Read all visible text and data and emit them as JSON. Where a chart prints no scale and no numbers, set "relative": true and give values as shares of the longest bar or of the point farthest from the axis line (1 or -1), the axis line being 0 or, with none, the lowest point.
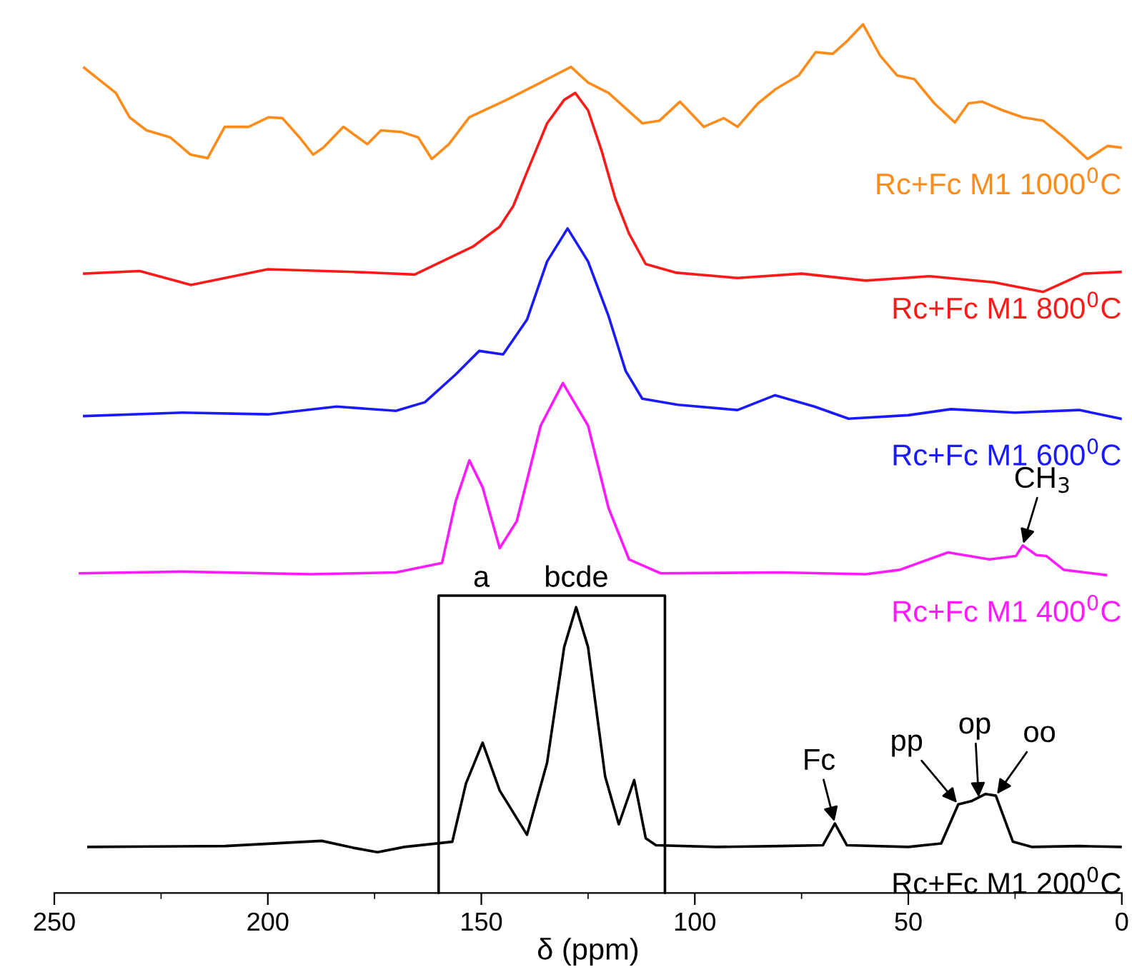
{
  "chart_data": {
    "type": "line",
    "relative": true,
    "xlabel": "δ (ppm)",
    "xlim": [
      250,
      0
    ],
    "xticks": [
      250,
      200,
      150,
      100,
      50,
      0
    ],
    "tick_labels": "x",
    "grid": false,
    "legend": false,
    "marker": "none",
    "line_style": "solid",
    "series": [
      {
        "name": "Rc+Fc M1 1000$^{0}$C",
        "color": "#ff8c1a",
        "x": [
          243.0,
          235.6,
          232.4,
          228.4,
          222.9,
          218.1,
          214.1,
          210.1,
          204.5,
          199.8,
          196.6,
          192.6,
          189.4,
          187.0,
          182.3,
          176.7,
          173.5,
          168.7,
          164.8,
          161.6,
          157.6,
          152.8,
          144.1,
          136.1,
          129.0,
          125.0,
          120.2,
          112.3,
          108.3,
          103.5,
          97.9,
          93.2,
          90.0,
          85.2,
          81.2,
          75.7,
          71.7,
          67.7,
          64.5,
          60.6,
          56.6,
          52.6,
          48.6,
          43.9,
          39.1,
          35.9,
          32.7,
          27.9,
          23.2,
          18.4,
          13.6,
          8.0,
          3.3,
          0.1
        ],
        "values": [
          0.95,
          0.921,
          0.893,
          0.878,
          0.87,
          0.85,
          0.846,
          0.882,
          0.882,
          0.893,
          0.892,
          0.87,
          0.85,
          0.858,
          0.882,
          0.862,
          0.878,
          0.876,
          0.87,
          0.845,
          0.862,
          0.893,
          0.913,
          0.933,
          0.951,
          0.933,
          0.921,
          0.886,
          0.889,
          0.911,
          0.882,
          0.892,
          0.882,
          0.909,
          0.925,
          0.941,
          0.968,
          0.966,
          0.98,
          1.0,
          0.964,
          0.941,
          0.937,
          0.909,
          0.887,
          0.909,
          0.911,
          0.901,
          0.893,
          0.889,
          0.87,
          0.845,
          0.86,
          0.858
        ]
      },
      {
        "name": "Rc+Fc M1 800$^{0}$C",
        "color": "#ff1a1a",
        "x": [
          243,
          230,
          218,
          200,
          180,
          165.6,
          152,
          145.7,
          142.5,
          139.3,
          134.6,
          130.6,
          128,
          125,
          121.8,
          118.6,
          115.4,
          111.5,
          104.3,
          90,
          75,
          60,
          45,
          30,
          18.4,
          9,
          0.2
        ],
        "values": [
          0.713,
          0.716,
          0.7,
          0.718,
          0.715,
          0.712,
          0.744,
          0.767,
          0.791,
          0.83,
          0.886,
          0.913,
          0.921,
          0.901,
          0.854,
          0.799,
          0.759,
          0.724,
          0.714,
          0.708,
          0.713,
          0.705,
          0.71,
          0.703,
          0.692,
          0.713,
          0.715
        ]
      },
      {
        "name": "Rc+Fc M1 600$^{0}$C",
        "color": "#1a1aff",
        "x": [
          243,
          220,
          200,
          183.9,
          170,
          163.2,
          156,
          150.5,
          144.9,
          139.3,
          134.6,
          129.8,
          125,
          120.2,
          116.2,
          112.3,
          104,
          90,
          81.2,
          72,
          64,
          50,
          40,
          25,
          10,
          0.2
        ],
        "values": [
          0.549,
          0.553,
          0.551,
          0.56,
          0.555,
          0.565,
          0.597,
          0.624,
          0.62,
          0.66,
          0.727,
          0.765,
          0.727,
          0.664,
          0.601,
          0.569,
          0.562,
          0.556,
          0.573,
          0.56,
          0.546,
          0.55,
          0.557,
          0.553,
          0.556,
          0.546
        ]
      },
      {
        "name": "Rc+Fc M1 400$^{0}$C",
        "color": "#ff1aff",
        "x": [
          244,
          220,
          190,
          170,
          159.2,
          156,
          152.8,
          149.7,
          145.7,
          141.7,
          136.1,
          130.9,
          125,
          120.2,
          115.4,
          108,
          80,
          60,
          52,
          40.7,
          31,
          24.8,
          23.2,
          20,
          17.7,
          13.6,
          3.7
        ],
        "values": [
          0.368,
          0.37,
          0.367,
          0.369,
          0.38,
          0.451,
          0.498,
          0.467,
          0.397,
          0.428,
          0.538,
          0.587,
          0.538,
          0.443,
          0.384,
          0.368,
          0.369,
          0.367,
          0.372,
          0.392,
          0.384,
          0.388,
          0.4,
          0.389,
          0.388,
          0.372,
          0.366
        ]
      },
      {
        "name": "Rc+Fc M1 200$^{0}$C",
        "color": "#000000",
        "x": [
          242,
          210,
          187.4,
          180,
          174.3,
          168,
          156.8,
          153.6,
          149.7,
          145.7,
          139.3,
          134.6,
          130.6,
          127.8,
          125,
          121,
          117.8,
          114.2,
          111.5,
          109.1,
          95,
          80,
          70,
          67.2,
          64.4,
          50,
          42.3,
          38.3,
          35.1,
          31.9,
          29.5,
          25.5,
          21,
          10,
          0.2
        ],
        "values": [
          0.053,
          0.054,
          0.06,
          0.052,
          0.047,
          0.053,
          0.059,
          0.126,
          0.173,
          0.118,
          0.067,
          0.15,
          0.283,
          0.329,
          0.283,
          0.134,
          0.079,
          0.13,
          0.063,
          0.055,
          0.053,
          0.054,
          0.055,
          0.08,
          0.055,
          0.053,
          0.057,
          0.102,
          0.106,
          0.114,
          0.112,
          0.059,
          0.053,
          0.054,
          0.053
        ]
      }
    ],
    "annotations": [
      "a",
      "bcde",
      {
        "text": "Fc",
        "x": 67.2,
        "y": 0.08
      },
      {
        "text": "pp",
        "x": 38.3,
        "y": 0.102
      },
      {
        "text": "op",
        "x": 33.5,
        "y": 0.108
      },
      {
        "text": "oo",
        "x": 29.5,
        "y": 0.112
      },
      {
        "text": "CH$_{3}$",
        "x": 23.2,
        "y": 0.4
      }
    ]
  }
}
